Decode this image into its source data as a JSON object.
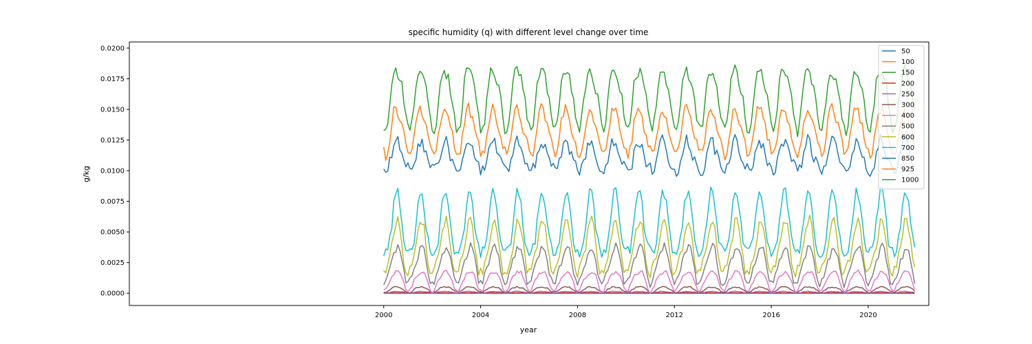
{
  "chart_data": {
    "type": "line",
    "title": "specific humidity (q) with different level change over time",
    "xlabel": "year",
    "ylabel": "g/kg",
    "xlim": [
      1989.5,
      2022.5
    ],
    "ylim": [
      -0.001,
      0.0205
    ],
    "x_ticks": [
      2000,
      2004,
      2008,
      2012,
      2016,
      2020
    ],
    "y_ticks": [
      0.0,
      0.0025,
      0.005,
      0.0075,
      0.01,
      0.0125,
      0.015,
      0.0175,
      0.02
    ],
    "y_tick_labels": [
      "0.0000",
      "0.0025",
      "0.0050",
      "0.0075",
      "0.0100",
      "0.0125",
      "0.0150",
      "0.0175",
      "0.0200"
    ],
    "x_start": "2000-01",
    "x_end": "2021-12",
    "frequency": "monthly",
    "grid": false,
    "legend_position": "top-right",
    "series": [
      {
        "name": "50",
        "color": "#1f77b4",
        "profile": {
          "mean": 2.5e-06,
          "amp": 5e-07,
          "noise": 0.0,
          "trend": 0.0
        }
      },
      {
        "name": "100",
        "color": "#ff7f0e",
        "profile": {
          "mean": 3e-06,
          "amp": 1e-06,
          "noise": 0.0,
          "trend": 0.0
        }
      },
      {
        "name": "150",
        "color": "#2ca02c",
        "profile": {
          "mean": 6e-06,
          "amp": 3e-06,
          "noise": 0.0,
          "trend": 0.0
        }
      },
      {
        "name": "200",
        "color": "#d62728",
        "profile": {
          "mean": 2e-05,
          "amp": 1.5e-05,
          "noise": 5e-06,
          "trend": 0.0
        }
      },
      {
        "name": "250",
        "color": "#9467bd",
        "profile": {
          "mean": 9e-05,
          "amp": 6e-05,
          "noise": 2e-05,
          "trend": 0.0
        }
      },
      {
        "name": "300",
        "color": "#8c564b",
        "profile": {
          "mean": 0.00032,
          "amp": 0.00022,
          "noise": 6e-05,
          "trend": 0.0
        }
      },
      {
        "name": "400",
        "color": "#e377c2",
        "profile": {
          "mean": 0.00105,
          "amp": 0.0008,
          "noise": 0.00015,
          "trend": 2e-08
        }
      },
      {
        "name": "500",
        "color": "#7f7f7f",
        "profile": {
          "mean": 0.0023,
          "amp": 0.00145,
          "noise": 0.0003,
          "trend": 3e-08
        }
      },
      {
        "name": "600",
        "color": "#bcbd22",
        "profile": {
          "mean": 0.0036,
          "amp": 0.0021,
          "noise": 0.0004,
          "trend": 3e-08
        }
      },
      {
        "name": "700",
        "color": "#17becf",
        "profile": {
          "mean": 0.0054,
          "amp": 0.0025,
          "noise": 0.00045,
          "trend": 3e-08
        }
      },
      {
        "name": "850",
        "color": "#1f77b4",
        "profile": {
          "mean": 0.0111,
          "amp": 0.0012,
          "noise": 0.0005,
          "trend": 0.0
        }
      },
      {
        "name": "925",
        "color": "#ff7f0e",
        "profile": {
          "mean": 0.0132,
          "amp": 0.0018,
          "noise": 0.00045,
          "trend": 0.0
        }
      },
      {
        "name": "1000",
        "color": "#2ca02c",
        "profile": {
          "mean": 0.016,
          "amp": 0.0024,
          "noise": 0.0005,
          "trend": 0.0
        }
      }
    ]
  }
}
